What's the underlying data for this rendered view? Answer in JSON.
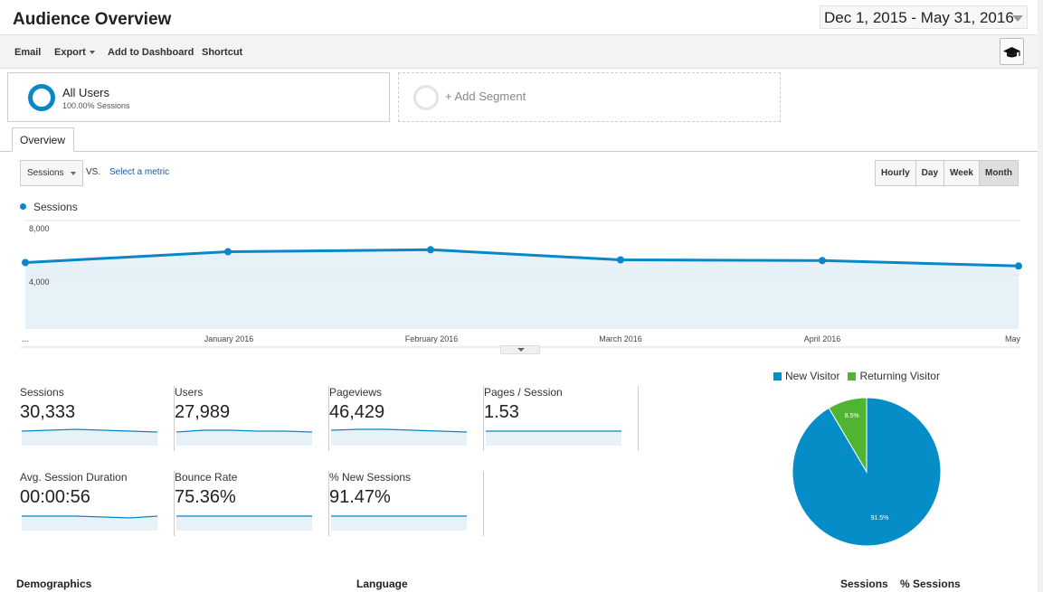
{
  "header": {
    "title": "Audience Overview",
    "date_range": "Dec 1, 2015 - May 31, 2016"
  },
  "toolbar": {
    "email": "Email",
    "export": "Export",
    "add_to_dashboard": "Add to Dashboard",
    "shortcut": "Shortcut",
    "cap_icon": "graduation-cap-icon"
  },
  "segments": {
    "active": {
      "name": "All Users",
      "sub": "100.00% Sessions"
    },
    "add_label": "+ Add Segment"
  },
  "tabs": [
    {
      "label": "Overview"
    }
  ],
  "metric_picker": {
    "selected": "Sessions",
    "vs": "VS.",
    "select_metric": "Select a metric"
  },
  "granularity": {
    "options": [
      "Hourly",
      "Day",
      "Week",
      "Month"
    ],
    "active": "Month"
  },
  "chart_data": {
    "type": "area",
    "series": [
      {
        "name": "Sessions",
        "values": [
          4900,
          5700,
          5850,
          5100,
          5050,
          4650
        ]
      }
    ],
    "x": [
      "...",
      "January 2016",
      "February 2016",
      "March 2016",
      "April 2016",
      "May"
    ],
    "yticks": [
      "8,000",
      "4,000"
    ],
    "ylim": [
      0,
      8000
    ],
    "color": "#0a87c8",
    "fill": "#e6f1f8"
  },
  "scorecards": [
    {
      "label": "Sessions",
      "value": "30,333"
    },
    {
      "label": "Users",
      "value": "27,989"
    },
    {
      "label": "Pageviews",
      "value": "46,429"
    },
    {
      "label": "Pages / Session",
      "value": "1.53"
    },
    {
      "label": "Avg. Session Duration",
      "value": "00:00:56"
    },
    {
      "label": "Bounce Rate",
      "value": "75.36%"
    },
    {
      "label": "% New Sessions",
      "value": "91.47%"
    }
  ],
  "pie": {
    "legend": [
      {
        "label": "New Visitor",
        "color": "#058dc7"
      },
      {
        "label": "Returning Visitor",
        "color": "#50b432"
      }
    ],
    "slices": [
      {
        "label": "91.5%",
        "value": 91.5,
        "color": "#058dc7"
      },
      {
        "label": "8.5%",
        "value": 8.5,
        "color": "#50b432"
      }
    ]
  },
  "bottom": {
    "demographics": "Demographics",
    "language": "Language",
    "sessions": "Sessions",
    "pct_sessions": "% Sessions"
  }
}
